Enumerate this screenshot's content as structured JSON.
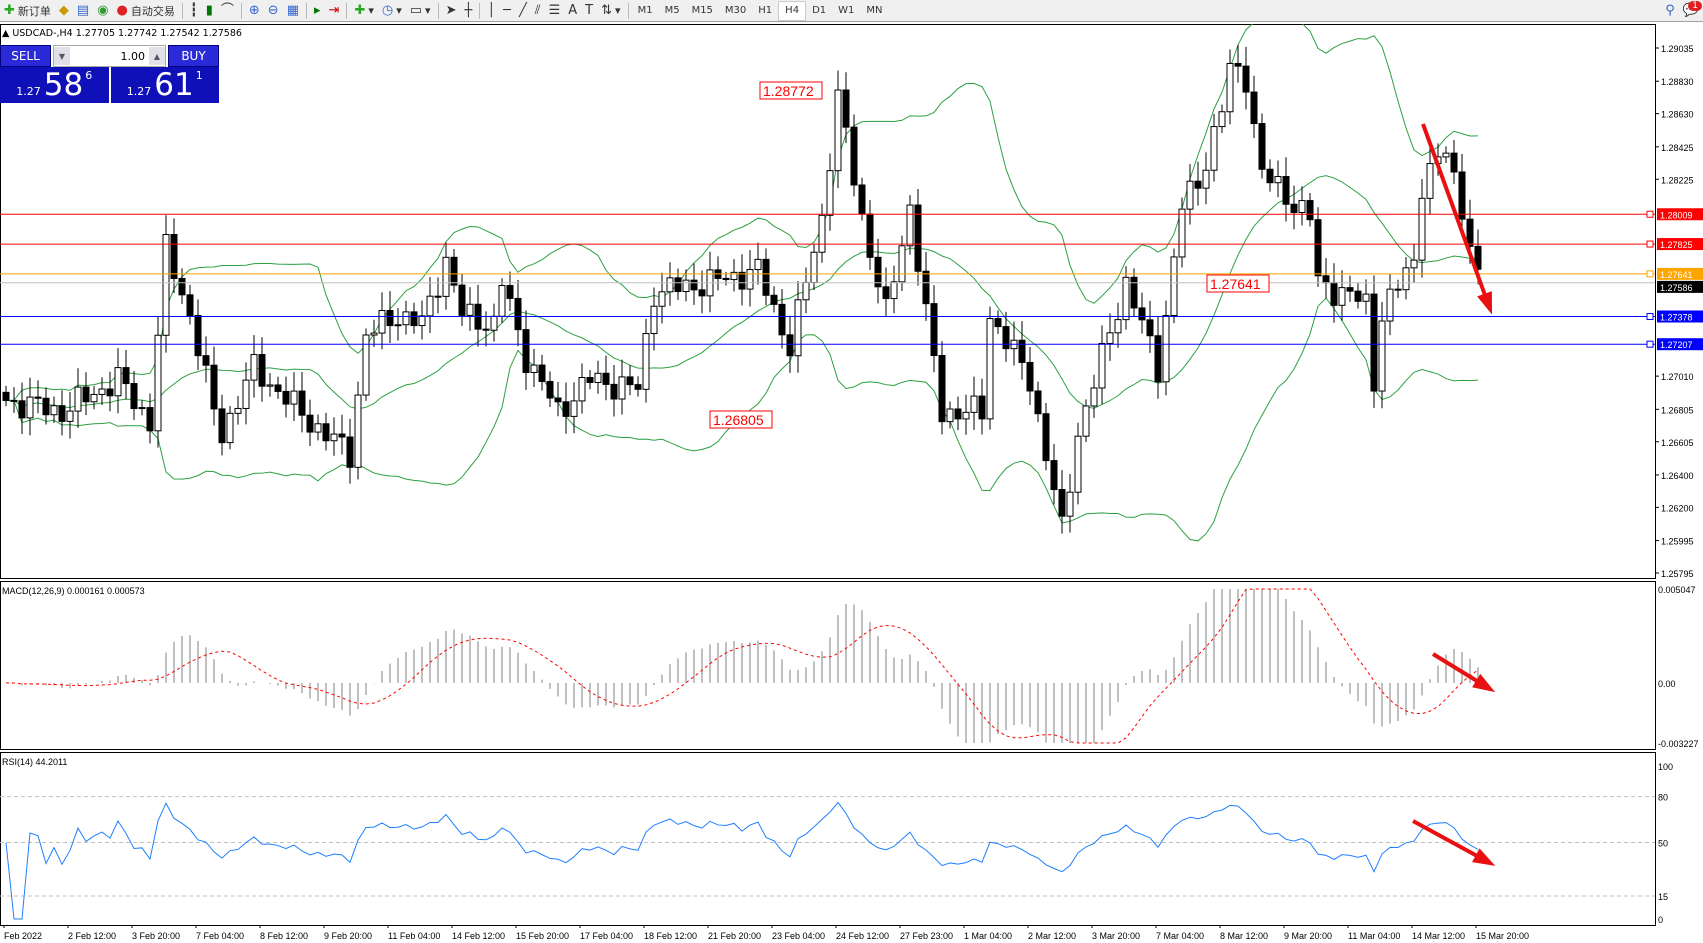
{
  "toolbar": {
    "new_order": "新订单",
    "auto_trading": "自动交易",
    "timeframes": [
      "M1",
      "M5",
      "M15",
      "M30",
      "H1",
      "H4",
      "D1",
      "W1",
      "MN"
    ],
    "active_timeframe": "H4",
    "notification_count": "1"
  },
  "chart_header": "USDCAD-,H4  1.27705 1.27742 1.27542 1.27586",
  "one_click": {
    "sell_label": "SELL",
    "buy_label": "BUY",
    "lot": "1.00",
    "sell_prefix": "1.27",
    "sell_big": "58",
    "sell_tick": "6",
    "buy_prefix": "1.27",
    "buy_big": "61",
    "buy_tick": "1"
  },
  "price_axis": [
    "1.29035",
    "1.28830",
    "1.28630",
    "1.28425",
    "1.28225",
    "1.27010",
    "1.26805",
    "1.26605",
    "1.26400",
    "1.26200",
    "1.25995",
    "1.25795"
  ],
  "hlines": [
    {
      "price": "1.28009",
      "color": "#ff0000"
    },
    {
      "price": "1.27825",
      "color": "#ff0000"
    },
    {
      "price": "1.27641",
      "color": "#ffa500"
    },
    {
      "price": "1.27586",
      "color": "#000000"
    },
    {
      "price": "1.27378",
      "color": "#0000ff"
    },
    {
      "price": "1.27207",
      "color": "#0000ff"
    }
  ],
  "annotations": [
    "1.28772",
    "1.26805",
    "1.27641"
  ],
  "macd": {
    "label": "MACD(12,26,9) 0.000161 0.000573",
    "axis": [
      "0.005047",
      "0.00",
      "-0.003227"
    ],
    "range": [
      -0.003227,
      0.005047
    ]
  },
  "rsi": {
    "label": "RSI(14) 44.2011",
    "axis": [
      "100",
      "80",
      "50",
      "15",
      "0"
    ],
    "levels": [
      80,
      50,
      15
    ]
  },
  "time_axis": [
    "Feb 2022",
    "2 Feb 12:00",
    "3 Feb 20:00",
    "7 Feb 04:00",
    "8 Feb 12:00",
    "9 Feb 20:00",
    "11 Feb 04:00",
    "14 Feb 12:00",
    "15 Feb 20:00",
    "17 Feb 04:00",
    "18 Feb 12:00",
    "21 Feb 20:00",
    "23 Feb 04:00",
    "24 Feb 12:00",
    "27 Feb 23:00",
    "1 Mar 04:00",
    "2 Mar 12:00",
    "3 Mar 20:00",
    "7 Mar 04:00",
    "8 Mar 12:00",
    "9 Mar 20:00",
    "11 Mar 04:00",
    "14 Mar 12:00",
    "15 Mar 20:00"
  ],
  "colors": {
    "bands": "#2ca040",
    "rsi": "#1e7fff",
    "macd_signal": "#ff0000",
    "macd_hist": "#c0c0c0",
    "arrow": "#e81010"
  },
  "chart_data": {
    "type": "candlestick",
    "symbol": "USDCAD-",
    "timeframe": "H4",
    "ylim": [
      1.25795,
      1.29035
    ],
    "close_path": [
      [
        0,
        1.2686
      ],
      [
        7,
        1.2679
      ],
      [
        14,
        1.2699
      ],
      [
        18,
        1.2673
      ],
      [
        20,
        1.2779
      ],
      [
        23,
        1.2739
      ],
      [
        26,
        1.2679
      ],
      [
        27,
        1.2666
      ],
      [
        31,
        1.2706
      ],
      [
        38,
        1.2673
      ],
      [
        43,
        1.2653
      ],
      [
        45,
        1.2726
      ],
      [
        49,
        1.2739
      ],
      [
        52,
        1.2733
      ],
      [
        55,
        1.2773
      ],
      [
        57,
        1.2739
      ],
      [
        61,
        1.2733
      ],
      [
        62,
        1.2759
      ],
      [
        65,
        1.2713
      ],
      [
        69,
        1.2679
      ],
      [
        73,
        1.2699
      ],
      [
        79,
        1.2693
      ],
      [
        81,
        1.2753
      ],
      [
        88,
        1.2759
      ],
      [
        94,
        1.2766
      ],
      [
        98,
        1.2719
      ],
      [
        102,
        1.2799
      ],
      [
        104,
        1.2873
      ],
      [
        107,
        1.2799
      ],
      [
        110,
        1.2739
      ],
      [
        113,
        1.2806
      ],
      [
        115,
        1.2739
      ],
      [
        117,
        1.2679
      ],
      [
        122,
        1.2679
      ],
      [
        123,
        1.2739
      ],
      [
        128,
        1.2699
      ],
      [
        132,
        1.2606
      ],
      [
        134,
        1.2666
      ],
      [
        140,
        1.2759
      ],
      [
        144,
        1.2706
      ],
      [
        147,
        1.2806
      ],
      [
        149,
        1.282
      ],
      [
        152,
        1.2866
      ],
      [
        153,
        1.289
      ],
      [
        155,
        1.2886
      ],
      [
        157,
        1.2826
      ],
      [
        163,
        1.2799
      ],
      [
        164,
        1.2759
      ],
      [
        170,
        1.2746
      ],
      [
        171,
        1.2699
      ],
      [
        172,
        1.2739
      ],
      [
        176,
        1.2773
      ],
      [
        177,
        1.282
      ],
      [
        180,
        1.284
      ],
      [
        182,
        1.2806
      ],
      [
        184,
        1.2759
      ]
    ]
  }
}
